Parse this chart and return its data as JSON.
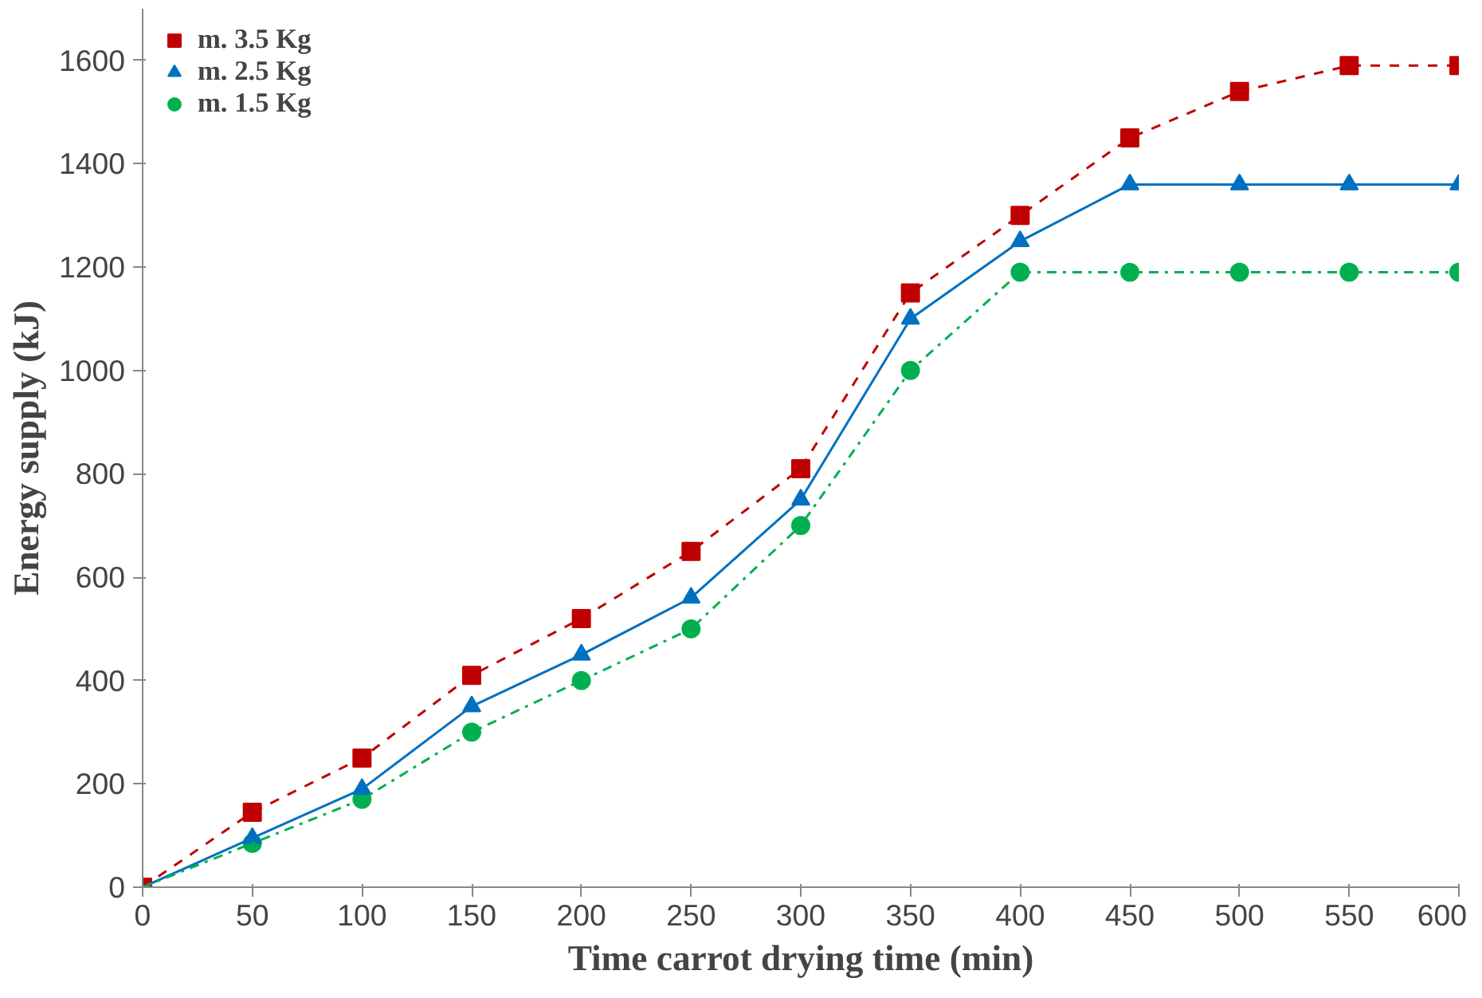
{
  "chart_data": {
    "type": "line",
    "xlabel": "Time carrot drying time (min)",
    "ylabel": "Energy supply (kJ)",
    "x": [
      0,
      50,
      100,
      150,
      200,
      250,
      300,
      350,
      400,
      450,
      500,
      550,
      600
    ],
    "xlim": [
      0,
      600
    ],
    "xticks": [
      0,
      50,
      100,
      150,
      200,
      250,
      300,
      350,
      400,
      450,
      500,
      550,
      600
    ],
    "ylim": [
      0,
      1700
    ],
    "yticks": [
      0,
      200,
      400,
      600,
      800,
      1000,
      1200,
      1400,
      1600
    ],
    "grid": false,
    "legend": "top left",
    "series": [
      {
        "name": "m. 3.5 Kg",
        "color": "#c00000",
        "marker": "square",
        "line_style": "dashed",
        "values": [
          0,
          145,
          250,
          410,
          520,
          650,
          810,
          1150,
          1300,
          1450,
          1540,
          1590,
          1590
        ]
      },
      {
        "name": "m. 2.5 Kg",
        "color": "#0070c0",
        "marker": "triangle",
        "line_style": "solid",
        "values": [
          0,
          95,
          190,
          350,
          450,
          560,
          750,
          1100,
          1250,
          1360,
          1360,
          1360,
          1360
        ]
      },
      {
        "name": "m. 1.5 Kg",
        "color": "#00b050",
        "marker": "circle",
        "line_style": "dashdot",
        "values": [
          0,
          85,
          170,
          300,
          400,
          500,
          700,
          1000,
          1190,
          1190,
          1190,
          1190,
          1190
        ]
      }
    ]
  }
}
